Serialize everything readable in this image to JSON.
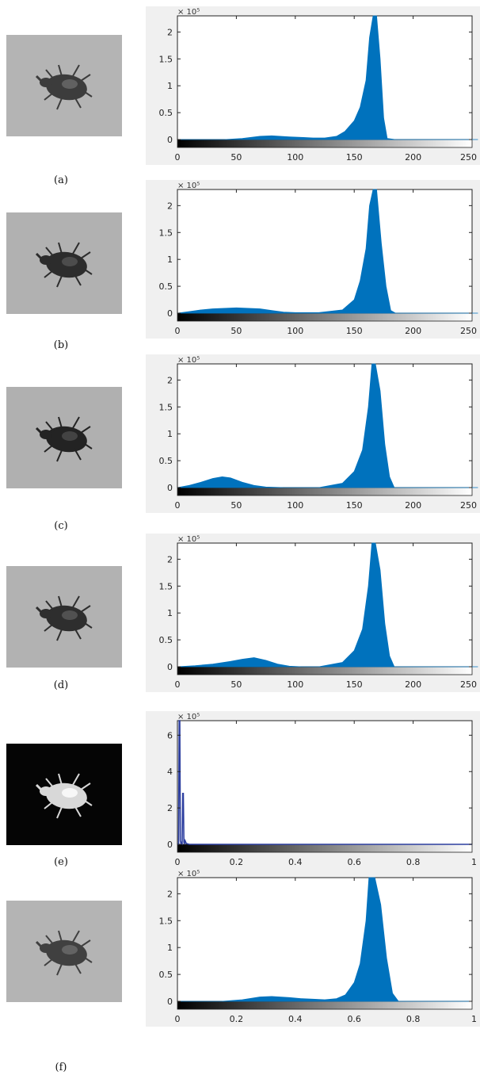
{
  "panels": [
    {
      "label": "(a)",
      "thumb_bg": "#b4b4b4",
      "thumb_fg": "#3c3c3c",
      "thumb_hi": "#6a6a6a"
    },
    {
      "label": "(b)",
      "thumb_bg": "#b1b1b1",
      "thumb_fg": "#2c2c2c",
      "thumb_hi": "#555555"
    },
    {
      "label": "(c)",
      "thumb_bg": "#b0b0b0",
      "thumb_fg": "#232323",
      "thumb_hi": "#4b4b4b"
    },
    {
      "label": "(d)",
      "thumb_bg": "#b2b2b2",
      "thumb_fg": "#2e2e2e",
      "thumb_hi": "#5a5a5a"
    },
    {
      "label": "(e)",
      "thumb_bg": "#050505",
      "thumb_fg": "#d8d8d8",
      "thumb_hi": "#ffffff"
    },
    {
      "label": "(f)",
      "thumb_bg": "#b4b4b4",
      "thumb_fg": "#404040",
      "thumb_hi": "#6c6c6c"
    }
  ],
  "colors": {
    "bar": "#0072bd",
    "line_e": "#2c3e9f",
    "frame": "#222222",
    "canvas": "#f0f0f0"
  },
  "chart_data": [
    {
      "type": "area",
      "scale_label": "× 10⁵",
      "xlim": [
        0,
        250
      ],
      "ylim": [
        0,
        2.3
      ],
      "xticks": [
        0,
        50,
        100,
        150,
        200,
        250
      ],
      "xticklabels": [
        "0",
        "50",
        "100",
        "150",
        "200",
        "250"
      ],
      "yticks": [
        0,
        0.5,
        1,
        1.5,
        2
      ],
      "yticklabels": [
        "0",
        "0.5",
        "1",
        "1.5",
        "2"
      ],
      "x": [
        0,
        40,
        55,
        70,
        80,
        95,
        105,
        115,
        125,
        135,
        142,
        150,
        155,
        160,
        163,
        166,
        169,
        172,
        175,
        178,
        185,
        255
      ],
      "y": [
        0,
        0,
        0.02,
        0.06,
        0.07,
        0.05,
        0.04,
        0.03,
        0.03,
        0.06,
        0.15,
        0.35,
        0.6,
        1.1,
        1.9,
        2.3,
        2.3,
        1.5,
        0.4,
        0.02,
        0,
        0
      ]
    },
    {
      "type": "area",
      "scale_label": "× 10⁵",
      "xlim": [
        0,
        250
      ],
      "ylim": [
        0,
        2.3
      ],
      "xticks": [
        0,
        50,
        100,
        150,
        200,
        250
      ],
      "xticklabels": [
        "0",
        "50",
        "100",
        "150",
        "200",
        "250"
      ],
      "yticks": [
        0,
        0.5,
        1,
        1.5,
        2
      ],
      "yticklabels": [
        "0",
        "0.5",
        "1",
        "1.5",
        "2"
      ],
      "x": [
        0,
        10,
        20,
        30,
        40,
        50,
        60,
        70,
        80,
        90,
        100,
        120,
        140,
        150,
        155,
        160,
        163,
        166,
        169,
        173,
        177,
        181,
        185,
        255
      ],
      "y": [
        0,
        0.03,
        0.06,
        0.08,
        0.09,
        0.1,
        0.09,
        0.08,
        0.05,
        0.02,
        0.01,
        0.01,
        0.06,
        0.25,
        0.6,
        1.2,
        2.0,
        2.3,
        2.3,
        1.3,
        0.5,
        0.05,
        0,
        0
      ]
    },
    {
      "type": "area",
      "scale_label": "× 10⁵",
      "xlim": [
        0,
        250
      ],
      "ylim": [
        0,
        2.3
      ],
      "xticks": [
        0,
        50,
        100,
        150,
        200,
        250
      ],
      "xticklabels": [
        "0",
        "50",
        "100",
        "150",
        "200",
        "250"
      ],
      "yticks": [
        0,
        0.5,
        1,
        1.5,
        2
      ],
      "yticklabels": [
        "0",
        "0.5",
        "1",
        "1.5",
        "2"
      ],
      "x": [
        0,
        10,
        20,
        30,
        38,
        45,
        55,
        65,
        75,
        90,
        120,
        140,
        150,
        157,
        162,
        165,
        168,
        172,
        176,
        180,
        184,
        255
      ],
      "y": [
        0,
        0.04,
        0.1,
        0.17,
        0.2,
        0.18,
        0.1,
        0.04,
        0.01,
        0,
        0,
        0.08,
        0.3,
        0.7,
        1.5,
        2.3,
        2.3,
        1.8,
        0.8,
        0.2,
        0,
        0
      ]
    },
    {
      "type": "area",
      "scale_label": "× 10⁵",
      "xlim": [
        0,
        250
      ],
      "ylim": [
        0,
        2.3
      ],
      "xticks": [
        0,
        50,
        100,
        150,
        200,
        250
      ],
      "xticklabels": [
        "0",
        "50",
        "100",
        "150",
        "200",
        "250"
      ],
      "yticks": [
        0,
        0.5,
        1,
        1.5,
        2
      ],
      "yticklabels": [
        "0",
        "0.5",
        "1",
        "1.5",
        "2"
      ],
      "x": [
        0,
        15,
        30,
        45,
        55,
        65,
        75,
        85,
        95,
        105,
        120,
        140,
        150,
        157,
        162,
        165,
        168,
        172,
        176,
        180,
        184,
        255
      ],
      "y": [
        0,
        0.02,
        0.05,
        0.1,
        0.14,
        0.17,
        0.12,
        0.05,
        0.01,
        0,
        0,
        0.08,
        0.3,
        0.7,
        1.5,
        2.3,
        2.3,
        1.8,
        0.8,
        0.2,
        0,
        0
      ]
    },
    {
      "type": "line",
      "scale_label": "× 10⁵",
      "xlim": [
        0,
        1
      ],
      "ylim": [
        0,
        6.8
      ],
      "xticks": [
        0,
        0.2,
        0.4,
        0.6,
        0.8,
        1
      ],
      "xticklabels": [
        "0",
        "0.2",
        "0.4",
        "0.6",
        "0.8",
        "1"
      ],
      "yticks": [
        0,
        2,
        4,
        6
      ],
      "yticklabels": [
        "0",
        "2",
        "4",
        "6"
      ],
      "x": [
        0,
        0.004,
        0.006,
        0.008,
        0.01,
        0.012,
        0.014,
        0.016,
        0.018,
        0.02,
        0.022,
        0.024,
        0.026,
        0.03,
        0.04,
        1
      ],
      "y": [
        0,
        0,
        6.8,
        6.8,
        0.2,
        0.05,
        0.1,
        0.05,
        2.8,
        2.8,
        0.1,
        0.05,
        0.2,
        0.05,
        0,
        0
      ]
    },
    {
      "type": "area",
      "scale_label": "× 10⁵",
      "xlim": [
        0,
        1
      ],
      "ylim": [
        0,
        2.3
      ],
      "xticks": [
        0,
        0.2,
        0.4,
        0.6,
        0.8,
        1
      ],
      "xticklabels": [
        "0",
        "0.2",
        "0.4",
        "0.6",
        "0.8",
        "1"
      ],
      "yticks": [
        0,
        0.5,
        1,
        1.5,
        2
      ],
      "yticklabels": [
        "0",
        "0.5",
        "1",
        "1.5",
        "2"
      ],
      "x": [
        0,
        0.15,
        0.22,
        0.28,
        0.32,
        0.38,
        0.42,
        0.46,
        0.5,
        0.54,
        0.57,
        0.6,
        0.62,
        0.64,
        0.65,
        0.67,
        0.69,
        0.71,
        0.73,
        0.75,
        1
      ],
      "y": [
        0,
        0,
        0.03,
        0.08,
        0.09,
        0.07,
        0.05,
        0.04,
        0.03,
        0.05,
        0.12,
        0.35,
        0.7,
        1.5,
        2.3,
        2.3,
        1.8,
        0.8,
        0.15,
        0,
        0
      ]
    }
  ]
}
